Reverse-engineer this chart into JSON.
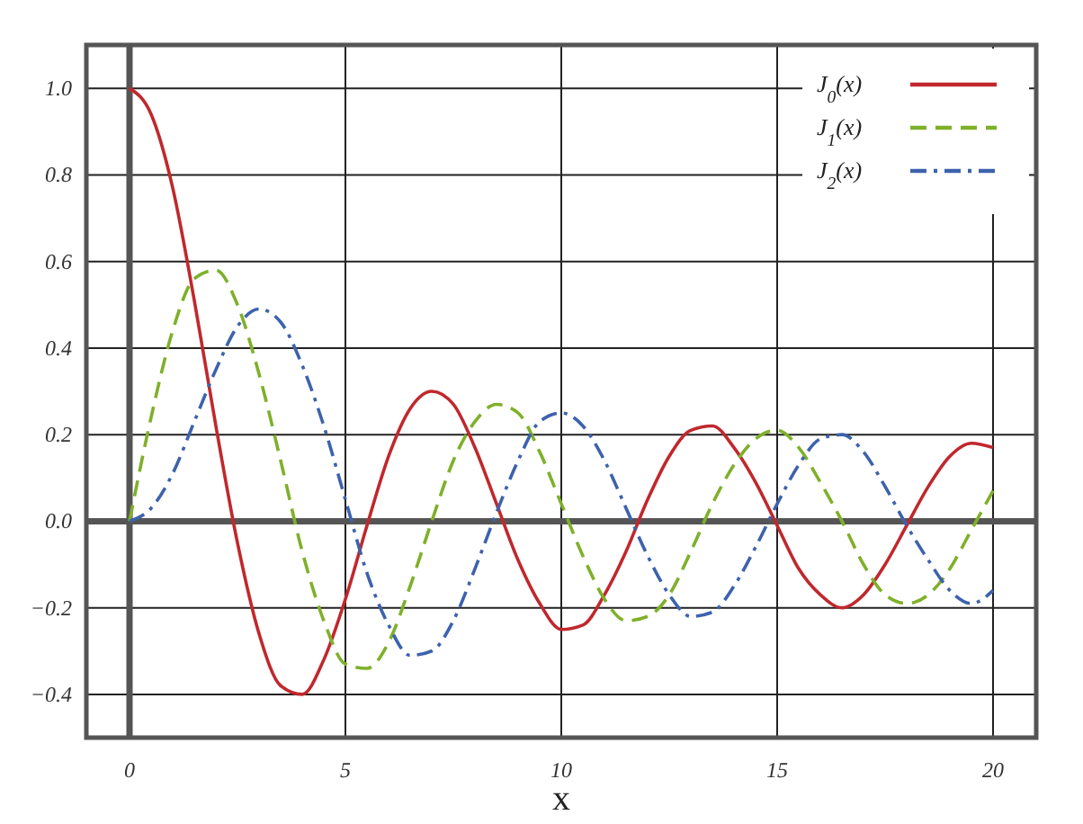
{
  "chart_data": {
    "type": "line",
    "xlabel": "x",
    "x": [
      0,
      0.5,
      1,
      1.5,
      2,
      2.5,
      3,
      3.5,
      4,
      4.5,
      5,
      5.5,
      6,
      6.5,
      7,
      7.5,
      8,
      8.5,
      9,
      9.5,
      10,
      10.5,
      11,
      11.5,
      12,
      12.5,
      13,
      13.5,
      14,
      14.5,
      15,
      15.5,
      16,
      16.5,
      17,
      17.5,
      18,
      18.5,
      19,
      19.5,
      20
    ],
    "series": [
      {
        "name": "J$_{0}$(x)",
        "color": "#c0282d",
        "line_style": "solid",
        "values": [
          1,
          0.94,
          0.77,
          0.51,
          0.22,
          -0.05,
          -0.26,
          -0.38,
          -0.4,
          -0.32,
          -0.18,
          -0.01,
          0.15,
          0.26,
          0.3,
          0.27,
          0.17,
          0.04,
          -0.09,
          -0.19,
          -0.25,
          -0.24,
          -0.17,
          -0.07,
          0.05,
          0.15,
          0.21,
          0.22,
          0.17,
          0.09,
          -0.01,
          -0.11,
          -0.17,
          -0.2,
          -0.17,
          -0.1,
          -0.01,
          0.08,
          0.15,
          0.18,
          0.17
        ]
      },
      {
        "name": "J$_{1}$(x)",
        "color": "#7fb02a",
        "line_style": "dashed",
        "values": [
          0,
          0.24,
          0.44,
          0.56,
          0.58,
          0.5,
          0.34,
          0.14,
          -0.07,
          -0.23,
          -0.33,
          -0.34,
          -0.28,
          -0.15,
          0,
          0.14,
          0.23,
          0.27,
          0.25,
          0.16,
          0.04,
          -0.08,
          -0.18,
          -0.23,
          -0.22,
          -0.17,
          -0.07,
          0.04,
          0.13,
          0.19,
          0.21,
          0.17,
          0.09,
          0,
          -0.1,
          -0.17,
          -0.19,
          -0.17,
          -0.11,
          -0.02,
          0.07
        ]
      },
      {
        "name": "J$_{2}$(x)",
        "color": "#3d62ad",
        "line_style": "dashdot",
        "values": [
          0,
          0.03,
          0.11,
          0.23,
          0.35,
          0.45,
          0.49,
          0.46,
          0.36,
          0.22,
          0.05,
          -0.12,
          -0.24,
          -0.31,
          -0.3,
          -0.23,
          -0.11,
          0.02,
          0.14,
          0.23,
          0.25,
          0.22,
          0.14,
          0.03,
          -0.08,
          -0.17,
          -0.22,
          -0.21,
          -0.15,
          -0.06,
          0.04,
          0.13,
          0.19,
          0.2,
          0.16,
          0.08,
          -0.01,
          -0.09,
          -0.16,
          -0.19,
          -0.16
        ]
      }
    ],
    "xlim": [
      -1,
      21
    ],
    "xticks": [
      0,
      5,
      10,
      15,
      20
    ],
    "ylim": [
      -0.5,
      1.1
    ],
    "yticks": [
      {
        "value": -0.4,
        "label": "−0.4"
      },
      {
        "value": -0.2,
        "label": "−0.2"
      },
      {
        "value": 0,
        "label": "0.0"
      },
      {
        "value": 0.2,
        "label": "0.2"
      },
      {
        "value": 0.4,
        "label": "0.4"
      },
      {
        "value": 0.6,
        "label": "0.6"
      },
      {
        "value": 0.8,
        "label": "0.8"
      },
      {
        "value": 1,
        "label": "1.0"
      }
    ],
    "grid": true,
    "legend": "top right"
  }
}
